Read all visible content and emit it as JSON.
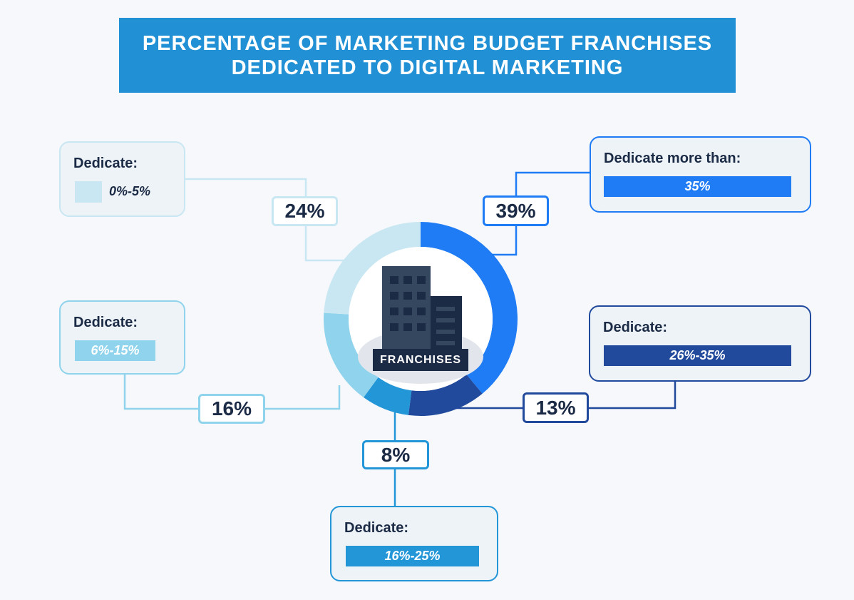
{
  "title": {
    "line1": "PERCENTAGE OF MARKETING BUDGET FRANCHISES",
    "line2": "DEDICATED TO DIGITAL MARKETING"
  },
  "center_label": "FRANCHISES",
  "chart_data": {
    "type": "pie",
    "variant": "donut",
    "title": "PERCENTAGE OF MARKETING BUDGET FRANCHISES DEDICATED TO DIGITAL MARKETING",
    "slices": [
      {
        "id": "more35",
        "card_title": "Dedicate more than:",
        "range": "35%",
        "value": 39,
        "label": "39%",
        "color": "#1f7cf5",
        "text_color": "#ffffff"
      },
      {
        "id": "r26_35",
        "card_title": "Dedicate:",
        "range": "26%-35%",
        "value": 13,
        "label": "13%",
        "color": "#224a9c",
        "text_color": "#ffffff"
      },
      {
        "id": "r16_25",
        "card_title": "Dedicate:",
        "range": "16%-25%",
        "value": 8,
        "label": "8%",
        "color": "#2396d8",
        "text_color": "#ffffff"
      },
      {
        "id": "r6_15",
        "card_title": "Dedicate:",
        "range": "6%-15%",
        "value": 16,
        "label": "16%",
        "color": "#8fd3ec",
        "text_color": "#ffffff"
      },
      {
        "id": "r0_5",
        "card_title": "Dedicate:",
        "range": "0%-5%",
        "value": 24,
        "label": "24%",
        "color": "#c9e7f2",
        "text_color": "#1b2a45"
      }
    ]
  }
}
